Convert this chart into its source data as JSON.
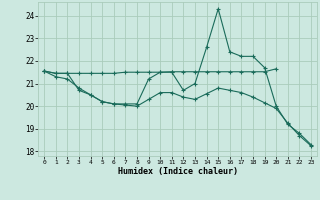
{
  "xlabel": "Humidex (Indice chaleur)",
  "bg_color": "#cce8e0",
  "grid_color": "#aaccbb",
  "line_color": "#1a6b5a",
  "xlim": [
    -0.5,
    23.5
  ],
  "ylim": [
    17.8,
    24.6
  ],
  "yticks": [
    18,
    19,
    20,
    21,
    22,
    23,
    24
  ],
  "xticks": [
    0,
    1,
    2,
    3,
    4,
    5,
    6,
    7,
    8,
    9,
    10,
    11,
    12,
    13,
    14,
    15,
    16,
    17,
    18,
    19,
    20,
    21,
    22,
    23
  ],
  "series1_x": [
    0,
    1,
    2,
    3,
    4,
    5,
    6,
    7,
    8,
    9,
    10,
    11,
    12,
    13,
    14,
    15,
    16,
    17,
    18,
    19,
    20
  ],
  "series1_y": [
    21.55,
    21.45,
    21.45,
    21.45,
    21.45,
    21.45,
    21.45,
    21.5,
    21.5,
    21.5,
    21.5,
    21.52,
    21.52,
    21.52,
    21.52,
    21.52,
    21.52,
    21.52,
    21.52,
    21.52,
    21.65
  ],
  "series2_x": [
    0,
    1,
    2,
    3,
    4,
    5,
    6,
    7,
    8,
    9,
    10,
    11,
    12,
    13,
    14,
    15,
    16,
    17,
    18,
    19,
    20,
    21,
    22,
    23
  ],
  "series2_y": [
    21.55,
    21.45,
    21.45,
    20.7,
    20.5,
    20.2,
    20.1,
    20.1,
    20.1,
    21.2,
    21.5,
    21.5,
    20.7,
    21.0,
    22.6,
    24.3,
    22.4,
    22.2,
    22.2,
    21.7,
    20.0,
    19.2,
    18.8,
    18.3
  ],
  "series3_x": [
    0,
    1,
    2,
    3,
    4,
    5,
    6,
    7,
    8,
    9,
    10,
    11,
    12,
    13,
    14,
    15,
    16,
    17,
    18,
    19,
    20,
    21,
    22,
    23
  ],
  "series3_y": [
    21.55,
    21.3,
    21.2,
    20.8,
    20.5,
    20.2,
    20.1,
    20.05,
    20.0,
    20.3,
    20.6,
    20.6,
    20.4,
    20.3,
    20.55,
    20.8,
    20.7,
    20.6,
    20.4,
    20.15,
    19.9,
    19.25,
    18.7,
    18.25
  ]
}
